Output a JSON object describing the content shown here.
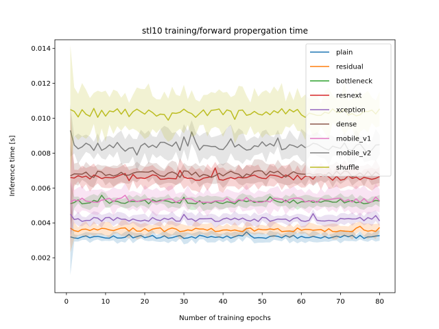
{
  "chart_data": {
    "type": "line",
    "title": "stl10 training/forward propergation time",
    "xlabel": "Number of training epochs",
    "ylabel": "Inference time [s]",
    "xlim": [
      -2.95,
      83.95
    ],
    "ylim": [
      0.0,
      0.0145
    ],
    "xticks": [
      0,
      10,
      20,
      30,
      40,
      50,
      60,
      70,
      80
    ],
    "yticks": [
      0.002,
      0.004,
      0.006,
      0.008,
      0.01,
      0.012,
      0.014
    ],
    "ytick_labels": [
      "0.002",
      "0.004",
      "0.006",
      "0.008",
      "0.010",
      "0.012",
      "0.014"
    ],
    "epochs": {
      "start": 1,
      "end": 80
    },
    "grid": false,
    "legend_position": "top-right",
    "series": [
      {
        "name": "plain",
        "color": "#1f77b4",
        "mean": 0.0032,
        "noise": 9e-05,
        "band": 0.00025,
        "first": 0.0032,
        "first_band": 0.0022
      },
      {
        "name": "residual",
        "color": "#ff7f0e",
        "mean": 0.0036,
        "noise": 0.00012,
        "band": 0.00035,
        "first": 0.0037,
        "first_band": 0.0014
      },
      {
        "name": "bottleneck",
        "color": "#2ca02c",
        "mean": 0.0052,
        "noise": 0.00013,
        "band": 0.0003,
        "first": 0.0051,
        "first_band": 0.0012
      },
      {
        "name": "resnext",
        "color": "#d62728",
        "mean": 0.0066,
        "noise": 0.00018,
        "band": 0.00055,
        "first": 0.0066,
        "first_band": 0.004
      },
      {
        "name": "xception",
        "color": "#9467bd",
        "mean": 0.0042,
        "noise": 0.00012,
        "band": 0.0003,
        "first": 0.0045,
        "first_band": 0.0012
      },
      {
        "name": "dense",
        "color": "#8c564b",
        "mean": 0.0068,
        "noise": 0.0002,
        "band": 0.0005,
        "first": 0.0067,
        "first_band": 0.0018
      },
      {
        "name": "mobile_v1",
        "color": "#e377c2",
        "mean": 0.0053,
        "noise": 0.00013,
        "band": 0.0006,
        "first": 0.0052,
        "first_band": 0.0012
      },
      {
        "name": "mobile_v2",
        "color": "#7f7f7f",
        "mean": 0.0084,
        "noise": 0.00025,
        "band": 0.0007,
        "first": 0.0093,
        "first_band": 0.0015
      },
      {
        "name": "shuffle",
        "color": "#bcbd22",
        "mean": 0.0103,
        "noise": 0.00025,
        "band": 0.0011,
        "first": 0.0105,
        "first_band": 0.0037
      }
    ]
  }
}
